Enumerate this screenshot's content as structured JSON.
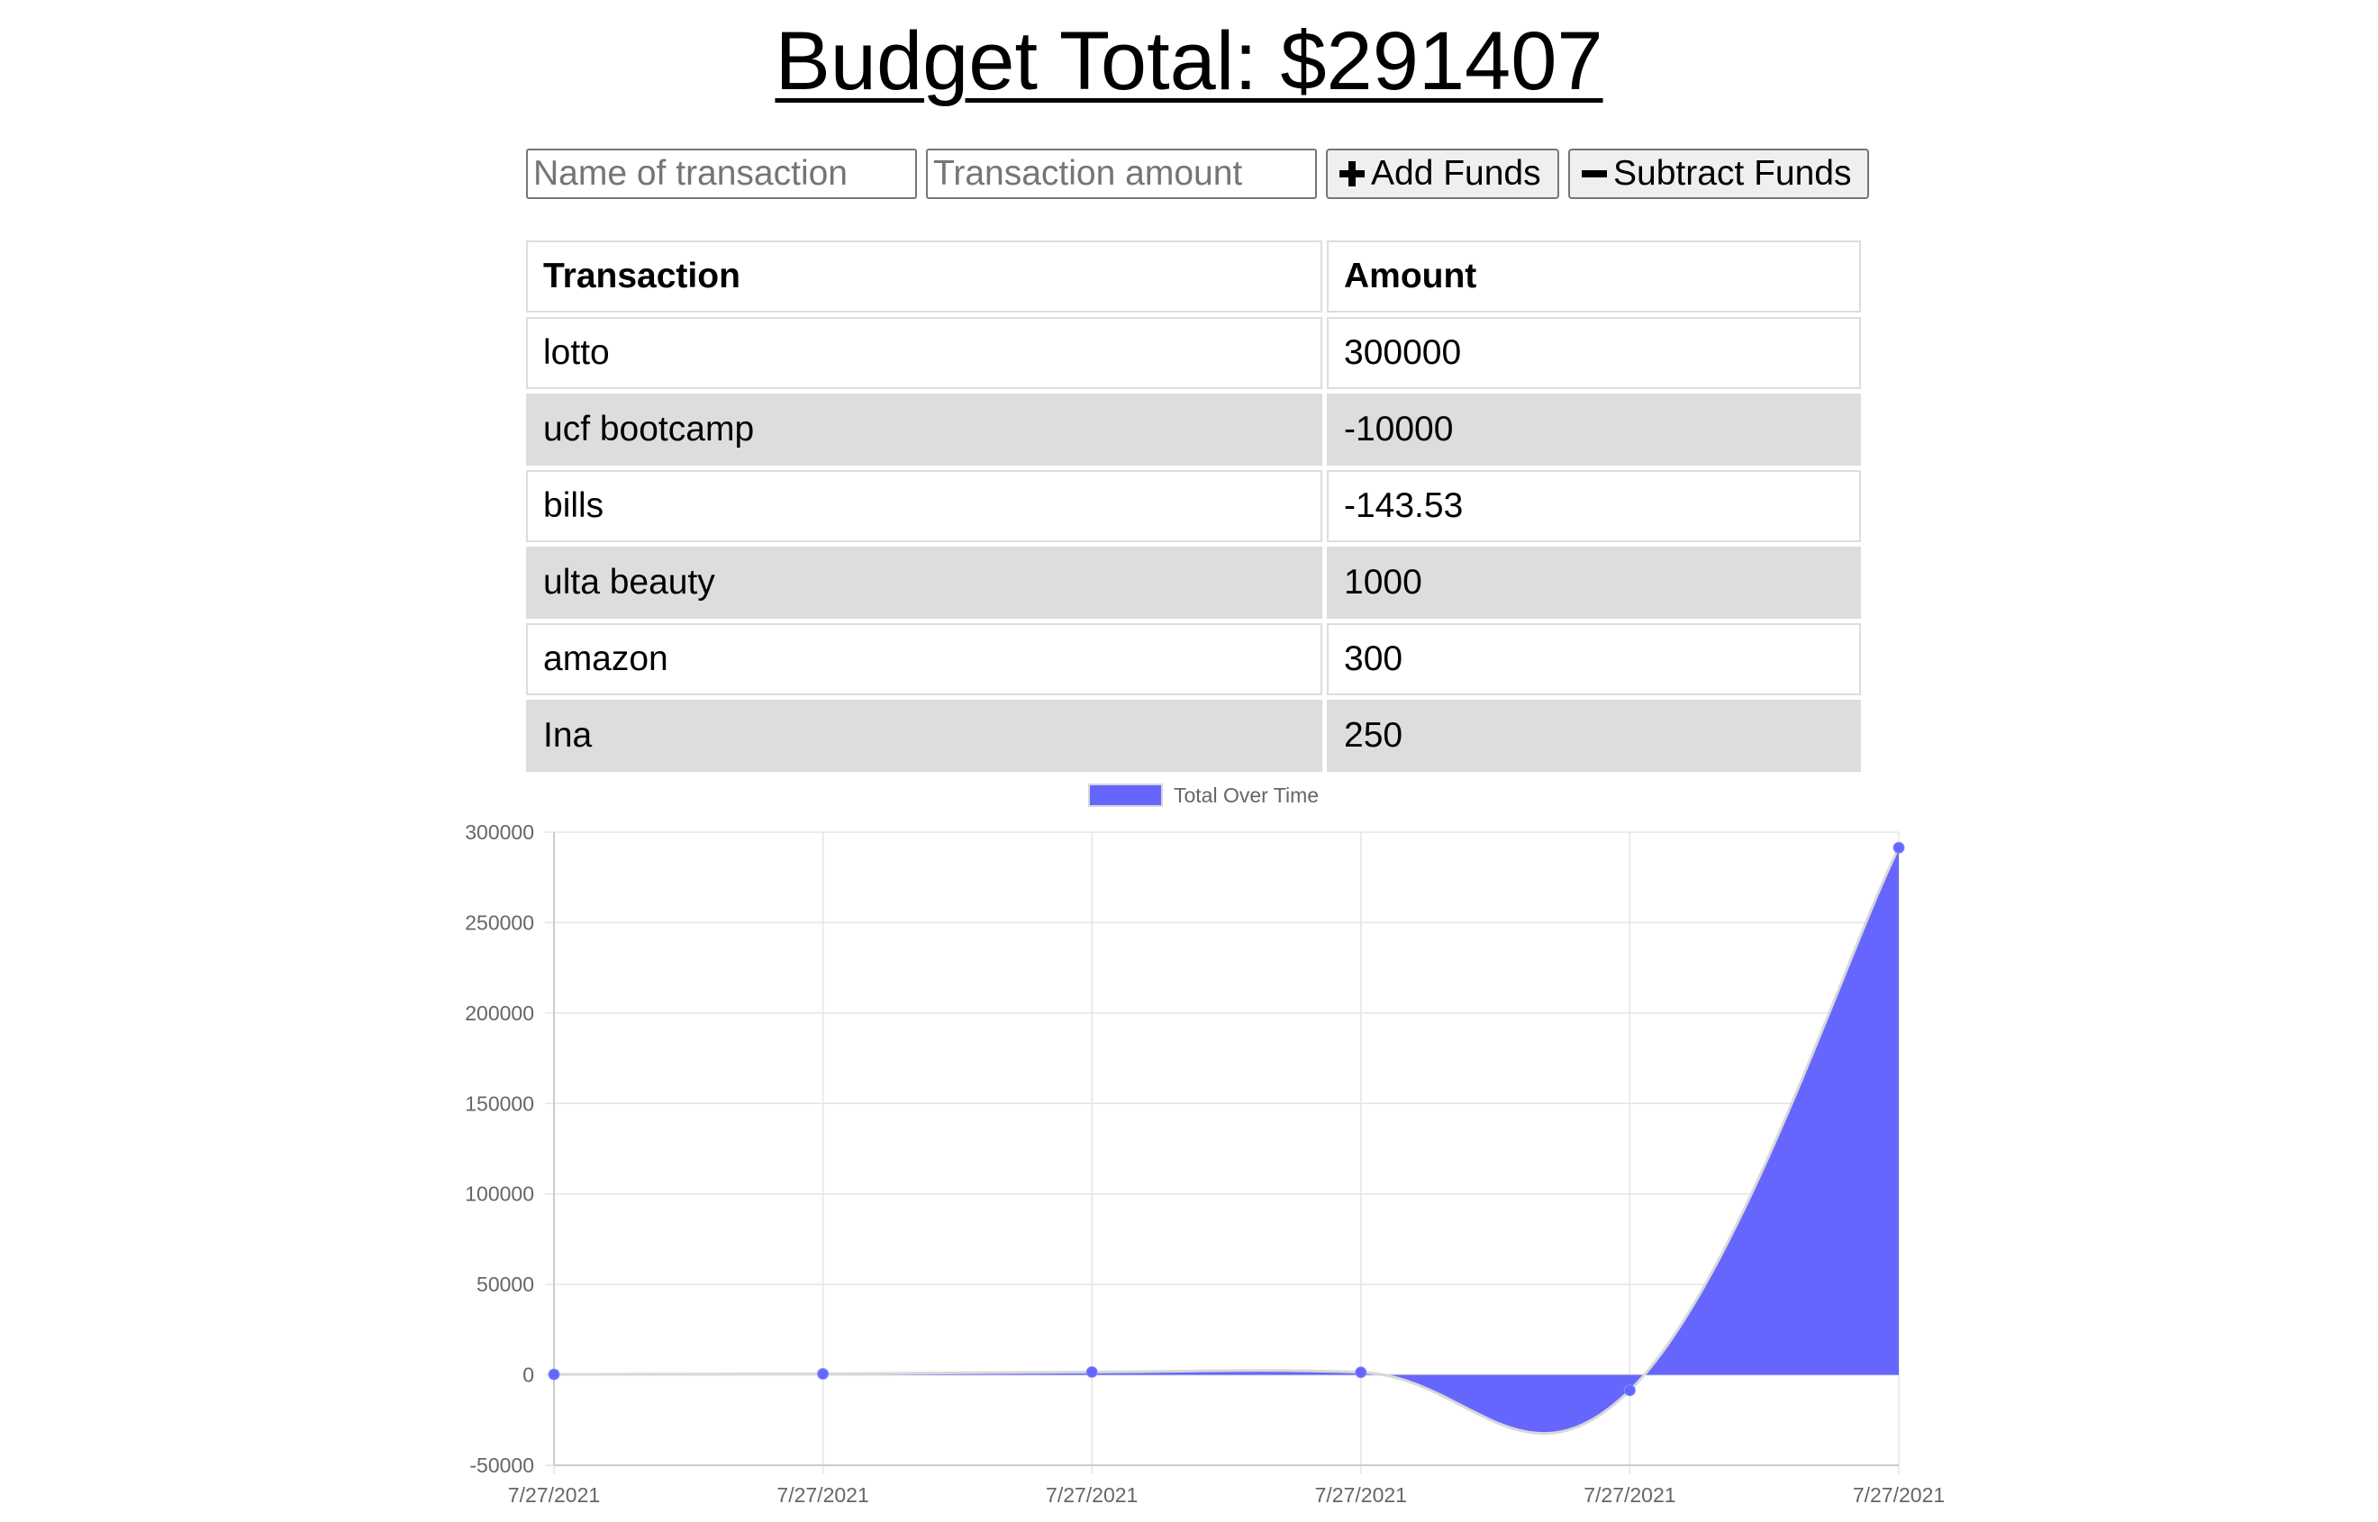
{
  "header": {
    "title": "Budget Total: $291407"
  },
  "form": {
    "name_placeholder": "Name of transaction",
    "amount_placeholder": "Transaction amount",
    "add_label": "Add Funds",
    "subtract_label": "Subtract Funds",
    "add_icon": "plus-icon",
    "subtract_icon": "minus-icon"
  },
  "table": {
    "headers": [
      "Transaction",
      "Amount"
    ],
    "rows": [
      {
        "name": "lotto",
        "amount": "300000"
      },
      {
        "name": "ucf bootcamp",
        "amount": "-10000"
      },
      {
        "name": "bills",
        "amount": "-143.53"
      },
      {
        "name": "ulta beauty",
        "amount": "1000"
      },
      {
        "name": "amazon",
        "amount": "300"
      },
      {
        "name": "Ina",
        "amount": "250"
      }
    ]
  },
  "colors": {
    "series_fill": "#6666ff",
    "point": "#6666ff",
    "grid": "#e5e5e5",
    "tick_text": "#666666",
    "row_shade": "#dddddd"
  },
  "chart_data": {
    "type": "area",
    "legend": "top",
    "grid": true,
    "x": [
      "7/27/2021",
      "7/27/2021",
      "7/27/2021",
      "7/27/2021",
      "7/27/2021",
      "7/27/2021"
    ],
    "series": [
      {
        "name": "Total Over Time",
        "values": [
          250,
          550,
          1550,
          1406.47,
          -8593.53,
          291406.47
        ]
      }
    ],
    "ylim": [
      -50000,
      300000
    ],
    "yticks": [
      300000,
      250000,
      200000,
      150000,
      100000,
      50000,
      0,
      -50000
    ]
  }
}
